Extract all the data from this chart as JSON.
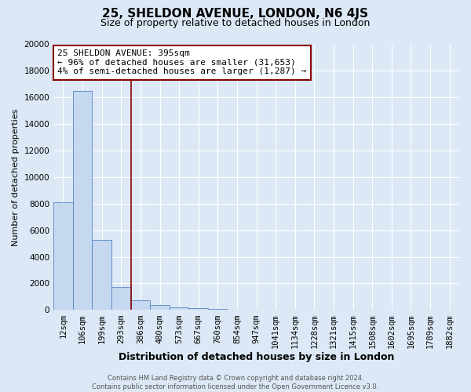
{
  "title": "25, SHELDON AVENUE, LONDON, N6 4JS",
  "subtitle": "Size of property relative to detached houses in London",
  "xlabel": "Distribution of detached houses by size in London",
  "ylabel": "Number of detached properties",
  "footer_line1": "Contains HM Land Registry data © Crown copyright and database right 2024.",
  "footer_line2": "Contains public sector information licensed under the Open Government Licence v3.0.",
  "annotation_line1": "25 SHELDON AVENUE: 395sqm",
  "annotation_line2": "← 96% of detached houses are smaller (31,653)",
  "annotation_line3": "4% of semi-detached houses are larger (1,287) →",
  "bar_color": "#c5d8f0",
  "bar_edge_color": "#5585c5",
  "red_line_x": 3.5,
  "categories": [
    "12sqm",
    "106sqm",
    "199sqm",
    "293sqm",
    "386sqm",
    "480sqm",
    "573sqm",
    "667sqm",
    "760sqm",
    "854sqm",
    "947sqm",
    "1041sqm",
    "1134sqm",
    "1228sqm",
    "1321sqm",
    "1415sqm",
    "1508sqm",
    "1602sqm",
    "1695sqm",
    "1789sqm",
    "1882sqm"
  ],
  "values": [
    8100,
    16500,
    5300,
    1750,
    700,
    350,
    200,
    150,
    100,
    0,
    0,
    0,
    0,
    0,
    0,
    0,
    0,
    0,
    0,
    0,
    0
  ],
  "ylim": [
    0,
    20000
  ],
  "yticks": [
    0,
    2000,
    4000,
    6000,
    8000,
    10000,
    12000,
    14000,
    16000,
    18000,
    20000
  ],
  "background_color": "#dce8f5",
  "plot_background": "#dce8f5",
  "grid_color": "#ffffff",
  "title_fontsize": 11,
  "subtitle_fontsize": 9,
  "annotation_fontsize": 8,
  "xlabel_fontsize": 9,
  "ylabel_fontsize": 8,
  "tick_fontsize": 7.5,
  "footer_fontsize": 6
}
